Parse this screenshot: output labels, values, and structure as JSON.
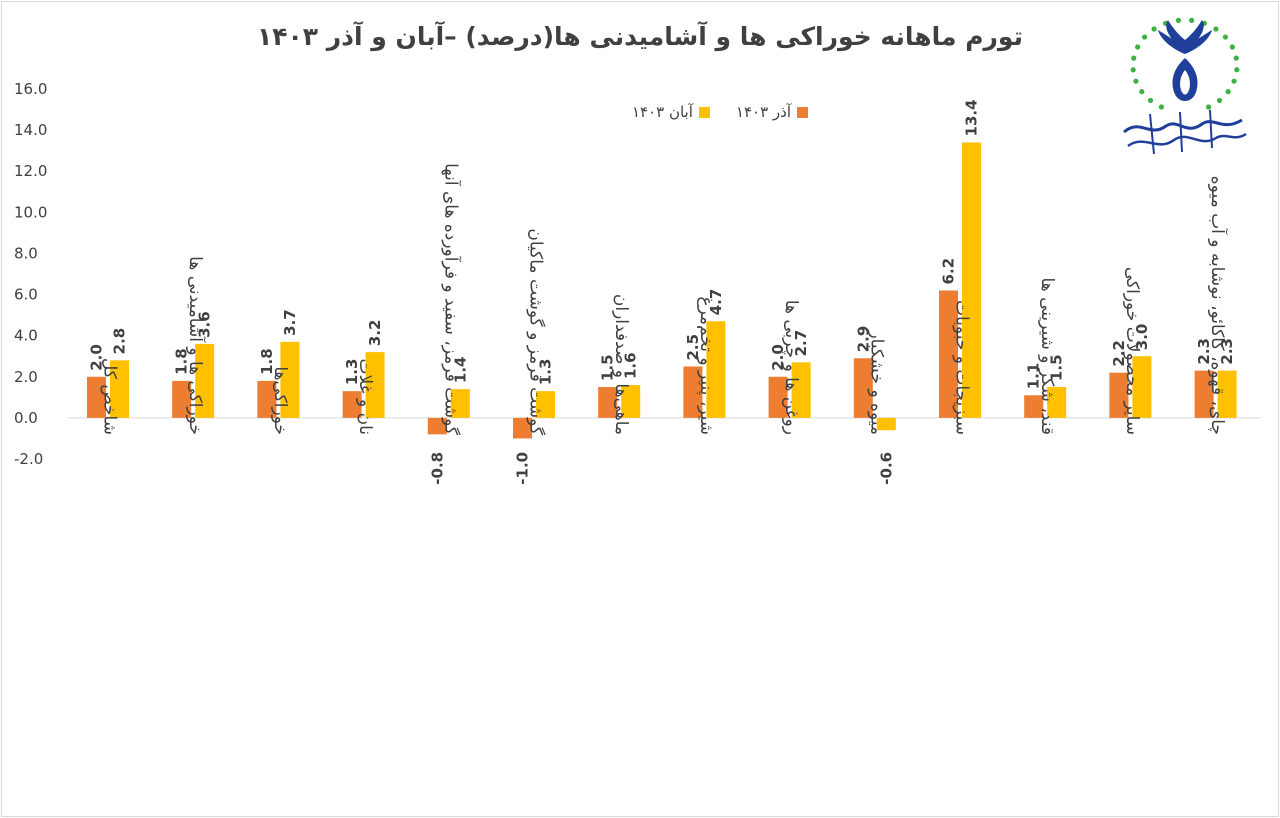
{
  "chart_data": {
    "type": "bar",
    "title": "تورم ماهانه خوراکی ها و آشامیدنی ها(درصد) –آبان و آذر ۱۴۰۳",
    "xlabel": "",
    "ylabel": "",
    "ylim": [
      -2.0,
      16.0
    ],
    "yticks": [
      "16.0",
      "14.0",
      "12.0",
      "10.0",
      "8.0",
      "6.0",
      "4.0",
      "2.0",
      "0.0",
      "-2.0"
    ],
    "ytick_values": [
      16,
      14,
      12,
      10,
      8,
      6,
      4,
      2,
      0,
      -2
    ],
    "grid": false,
    "legend_position": "top-center",
    "categories": [
      "شاخص کل",
      "خوراکی ها و آشامیدنی ها",
      "خوراکی‌ها",
      "نان و غلات",
      "گوشت قرمز، سفید و فرآورده های آنها",
      "گوشت قرمز و گوشت ماکیان",
      "ماهی‌ها و صدفداران",
      "شیر، پنیر و تخم‌مرغ",
      "روغن ها و چربی ها",
      "میوه و خشکبار",
      "سبزیجات و حبوبات",
      "قند، شکر و شیرینی ها",
      "سایر محصولات خوراکی",
      "چای، قهوه، کاکائو، نوشابه و آب میوه"
    ],
    "series": [
      {
        "name": "آذر ۱۴۰۳",
        "color": "#ed7d31",
        "values": [
          2.0,
          1.8,
          1.8,
          1.3,
          -0.8,
          -1.0,
          1.5,
          2.5,
          2.0,
          2.9,
          6.2,
          1.1,
          2.2,
          2.3
        ],
        "labels": [
          "2.0",
          "1.8",
          "1.8",
          "1.3",
          "-0.8",
          "-1.0",
          "1.5",
          "2.5",
          "2.0",
          "2.9",
          "6.2",
          "1.1",
          "2.2",
          "2.3"
        ]
      },
      {
        "name": "آبان ۱۴۰۳",
        "color": "#ffc000",
        "values": [
          2.8,
          3.6,
          3.7,
          3.2,
          1.4,
          1.3,
          1.6,
          4.7,
          2.7,
          -0.6,
          13.4,
          1.5,
          3.0,
          2.3
        ],
        "labels": [
          "2.8",
          "3.6",
          "3.7",
          "3.2",
          "1.4",
          "1.3",
          "1.6",
          "4.7",
          "2.7",
          "-0.6",
          "13.4",
          "1.5",
          "3.0",
          "2.3"
        ]
      }
    ]
  },
  "colors": {
    "axis_text": "#404040",
    "zero_line": "#d9d9d9",
    "logo_blue": "#1f3f9a",
    "logo_green": "#3cb043"
  },
  "logo": {
    "icon": "association-logo-icon"
  }
}
